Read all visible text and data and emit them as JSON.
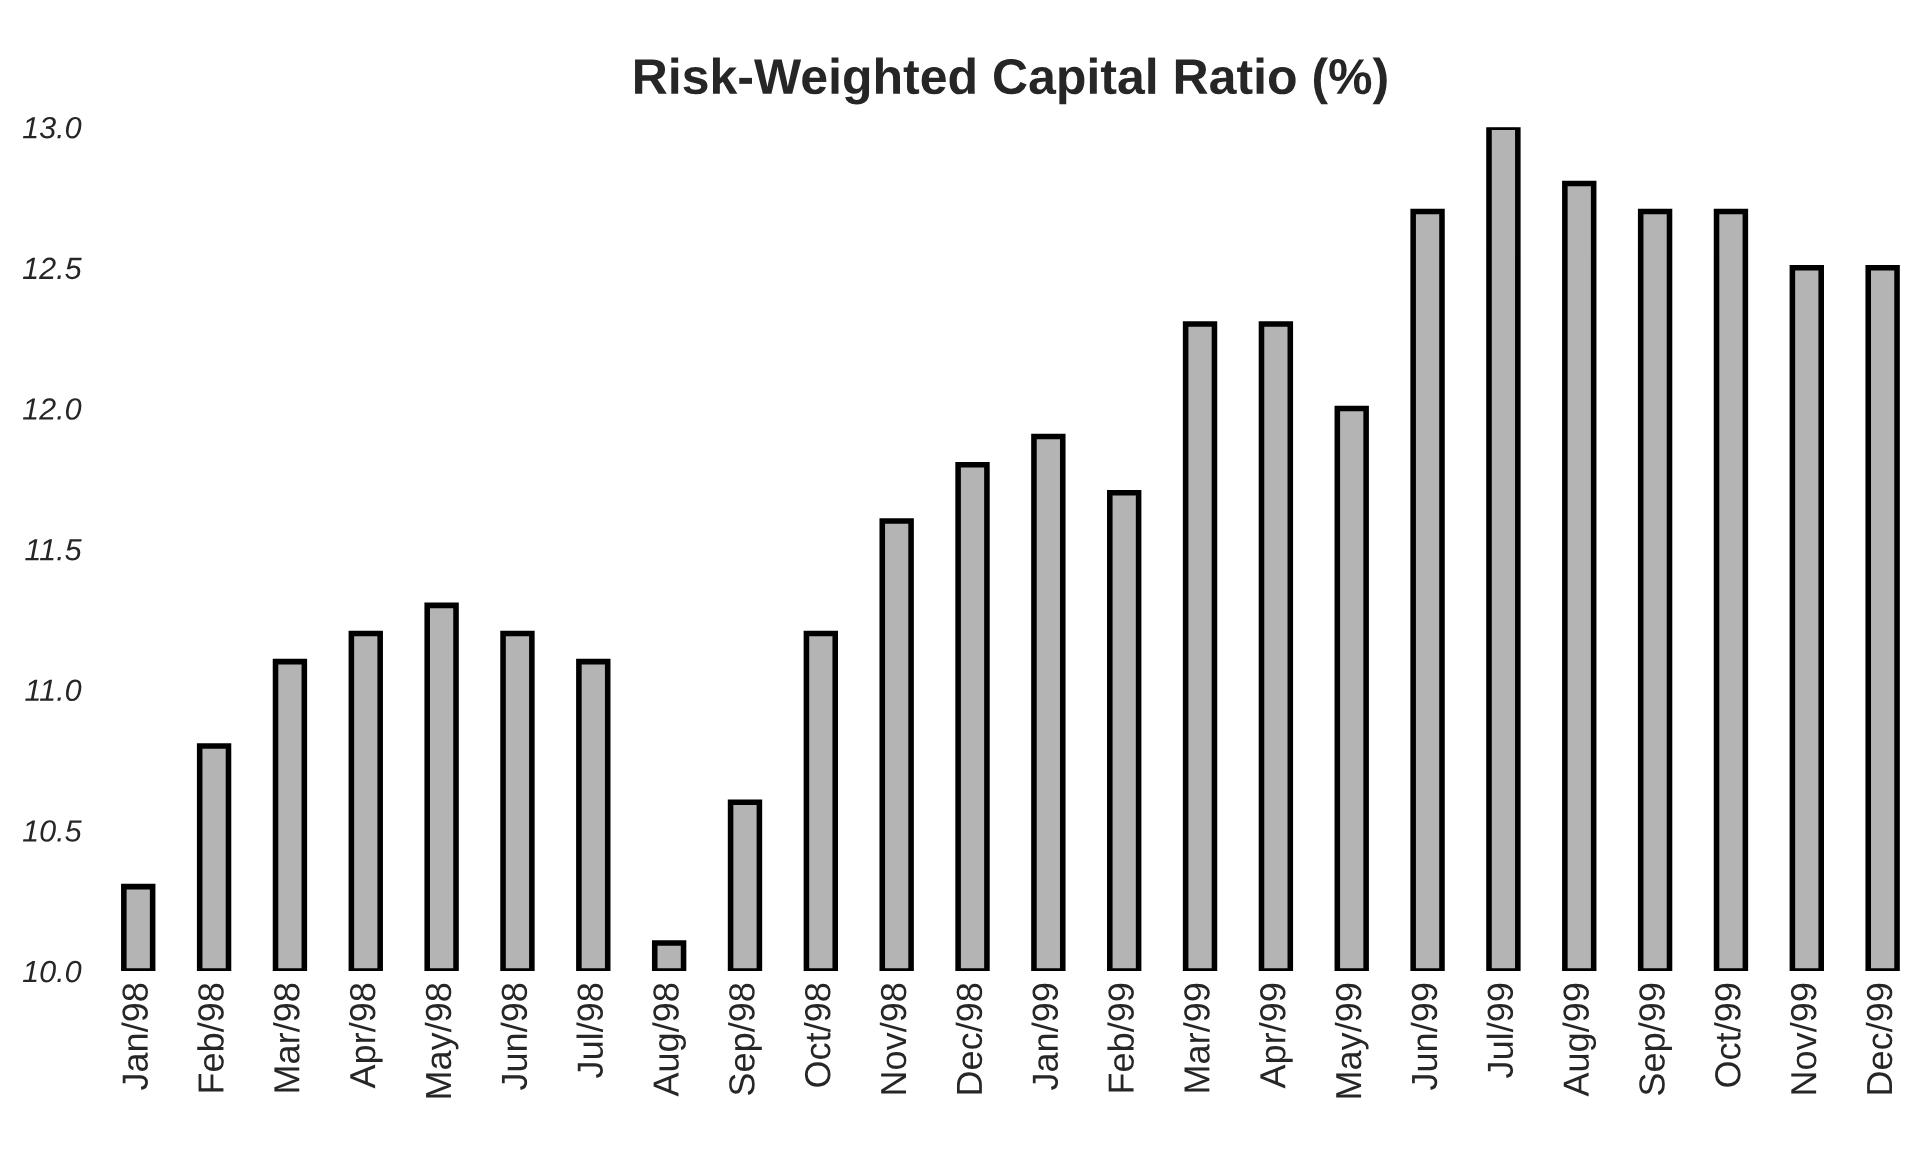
{
  "chart_data": {
    "type": "bar",
    "title": "Risk-Weighted Capital Ratio (%)",
    "categories": [
      "Jan/98",
      "Feb/98",
      "Mar/98",
      "Apr/98",
      "May/98",
      "Jun/98",
      "Jul/98",
      "Aug/98",
      "Sep/98",
      "Oct/98",
      "Nov/98",
      "Dec/98",
      "Jan/99",
      "Feb/99",
      "Mar/99",
      "Apr/99",
      "May/99",
      "Jun/99",
      "Jul/99",
      "Aug/99",
      "Sep/99",
      "Oct/99",
      "Nov/99",
      "Dec/99"
    ],
    "values": [
      10.3,
      10.8,
      11.1,
      11.2,
      11.3,
      11.2,
      11.1,
      10.1,
      10.6,
      11.2,
      11.6,
      11.8,
      11.9,
      11.7,
      12.3,
      12.3,
      12.0,
      12.7,
      13.0,
      12.8,
      12.7,
      12.7,
      12.5,
      12.5
    ],
    "color": "#b4b4b4",
    "ylim": [
      10.0,
      13.0
    ],
    "yticks": [
      {
        "value": 10.0,
        "label": "10.0"
      },
      {
        "value": 10.5,
        "label": "10.5"
      },
      {
        "value": 11.0,
        "label": "11.0"
      },
      {
        "value": 11.5,
        "label": "11.5"
      },
      {
        "value": 12.0,
        "label": "12.0"
      },
      {
        "value": 12.5,
        "label": "12.5"
      },
      {
        "value": 13.0,
        "label": "13.0"
      }
    ],
    "grid": false
  }
}
